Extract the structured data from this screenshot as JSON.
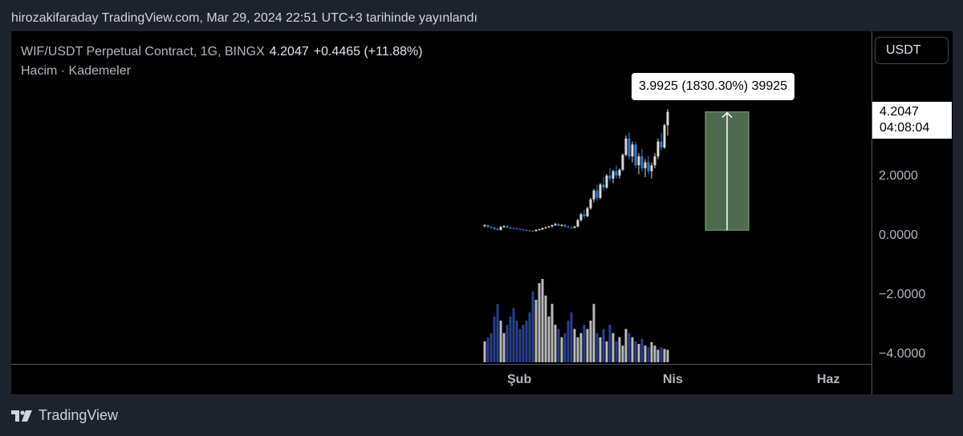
{
  "header": {
    "published": "hirozakifaraday TradingView.com, Mar 29, 2024 22:51 UTC+3 tarihinde yayınlandı"
  },
  "legend": {
    "symbol": "WIF/USDT Perpetual Contract, 1G, BINGX",
    "last": "4.2047",
    "change": "+0.4465 (+11.88%)",
    "indicators": "Hacim · Kademeler"
  },
  "currency": "USDT",
  "price_axis": {
    "ticks": [
      "2.0000",
      "0.0000",
      "−2.0000",
      "−4.0000"
    ],
    "last_price": "4.2047",
    "countdown": "04:08:04"
  },
  "time_axis": {
    "labels": [
      "Şub",
      "Nis",
      "Haz"
    ]
  },
  "measure": {
    "label": "3.9925 (1830.30%) 39925"
  },
  "brand": {
    "name": "TradingView"
  },
  "colors": {
    "background": "#000000",
    "up_candle": "#d9d9d9",
    "down_candle": "#3b78c4",
    "measure_fill": "#4d6b4d",
    "volume_up": "#b8b8b8",
    "volume_down": "#2c3f8c"
  },
  "chart_data": {
    "type": "candlestick",
    "symbol": "WIF/USDT",
    "ylim": [
      -4.0,
      5.0
    ],
    "y_ticks": [
      2.0,
      0.0,
      -2.0,
      -4.0
    ],
    "x_labels": [
      "Şub",
      "Nis",
      "Haz"
    ],
    "measure": {
      "from": 0.21,
      "to": 4.2,
      "change": 3.9925,
      "change_pct": 1830.3
    },
    "candles": [
      [
        0.35,
        0.42,
        0.3,
        0.38
      ],
      [
        0.38,
        0.4,
        0.28,
        0.32
      ],
      [
        0.32,
        0.36,
        0.25,
        0.3
      ],
      [
        0.3,
        0.33,
        0.22,
        0.25
      ],
      [
        0.25,
        0.3,
        0.2,
        0.22
      ],
      [
        0.22,
        0.35,
        0.2,
        0.32
      ],
      [
        0.32,
        0.38,
        0.28,
        0.35
      ],
      [
        0.35,
        0.37,
        0.27,
        0.3
      ],
      [
        0.3,
        0.32,
        0.24,
        0.28
      ],
      [
        0.28,
        0.31,
        0.24,
        0.27
      ],
      [
        0.27,
        0.29,
        0.23,
        0.25
      ],
      [
        0.25,
        0.27,
        0.21,
        0.23
      ],
      [
        0.23,
        0.26,
        0.2,
        0.22
      ],
      [
        0.22,
        0.24,
        0.18,
        0.2
      ],
      [
        0.2,
        0.23,
        0.17,
        0.19
      ],
      [
        0.19,
        0.22,
        0.16,
        0.18
      ],
      [
        0.18,
        0.24,
        0.17,
        0.22
      ],
      [
        0.22,
        0.26,
        0.2,
        0.24
      ],
      [
        0.24,
        0.3,
        0.22,
        0.28
      ],
      [
        0.28,
        0.33,
        0.25,
        0.31
      ],
      [
        0.31,
        0.36,
        0.28,
        0.34
      ],
      [
        0.34,
        0.4,
        0.3,
        0.38
      ],
      [
        0.38,
        0.45,
        0.35,
        0.42
      ],
      [
        0.42,
        0.44,
        0.34,
        0.36
      ],
      [
        0.36,
        0.41,
        0.33,
        0.39
      ],
      [
        0.39,
        0.42,
        0.3,
        0.33
      ],
      [
        0.33,
        0.36,
        0.28,
        0.3
      ],
      [
        0.3,
        0.33,
        0.27,
        0.29
      ],
      [
        0.29,
        0.35,
        0.27,
        0.33
      ],
      [
        0.33,
        0.6,
        0.31,
        0.55
      ],
      [
        0.55,
        0.8,
        0.5,
        0.75
      ],
      [
        0.75,
        0.9,
        0.6,
        0.68
      ],
      [
        0.68,
        1.0,
        0.65,
        0.95
      ],
      [
        0.95,
        1.3,
        0.9,
        1.25
      ],
      [
        1.25,
        1.6,
        1.15,
        1.55
      ],
      [
        1.55,
        1.75,
        1.2,
        1.3
      ],
      [
        1.3,
        1.8,
        1.25,
        1.75
      ],
      [
        1.75,
        2.0,
        1.55,
        1.65
      ],
      [
        1.65,
        2.1,
        1.6,
        2.05
      ],
      [
        2.05,
        2.3,
        1.85,
        1.95
      ],
      [
        1.95,
        2.25,
        1.8,
        2.2
      ],
      [
        2.2,
        2.4,
        1.95,
        2.05
      ],
      [
        2.05,
        2.3,
        1.95,
        2.25
      ],
      [
        2.25,
        2.8,
        2.2,
        2.75
      ],
      [
        2.75,
        3.4,
        2.7,
        3.3
      ],
      [
        3.3,
        3.5,
        2.6,
        2.7
      ],
      [
        2.7,
        3.2,
        2.5,
        3.1
      ],
      [
        3.1,
        3.2,
        2.3,
        2.4
      ],
      [
        2.4,
        2.8,
        2.1,
        2.7
      ],
      [
        2.7,
        2.95,
        2.2,
        2.3
      ],
      [
        2.3,
        2.6,
        2.0,
        2.5
      ],
      [
        2.5,
        2.7,
        2.1,
        2.2
      ],
      [
        2.2,
        2.5,
        1.95,
        2.4
      ],
      [
        2.4,
        2.8,
        2.3,
        2.7
      ],
      [
        2.7,
        3.3,
        2.6,
        3.2
      ],
      [
        3.2,
        3.5,
        2.9,
        3.0
      ],
      [
        3.0,
        3.8,
        2.95,
        3.75
      ],
      [
        3.75,
        4.3,
        3.4,
        4.2
      ]
    ],
    "volume_relative": [
      0.25,
      0.3,
      0.35,
      0.55,
      0.7,
      0.5,
      0.35,
      0.45,
      0.55,
      0.65,
      0.5,
      0.4,
      0.45,
      0.5,
      0.6,
      0.85,
      0.75,
      0.95,
      1.0,
      0.8,
      0.55,
      0.7,
      0.45,
      0.4,
      0.3,
      0.35,
      0.5,
      0.6,
      0.4,
      0.3,
      0.35,
      0.45,
      0.4,
      0.5,
      0.7,
      0.35,
      0.3,
      0.4,
      0.25,
      0.45,
      0.35,
      0.25,
      0.3,
      0.2,
      0.4,
      0.35,
      0.3,
      0.25,
      0.22,
      0.28,
      0.2,
      0.18,
      0.24,
      0.2,
      0.15,
      0.18,
      0.16,
      0.15
    ]
  }
}
